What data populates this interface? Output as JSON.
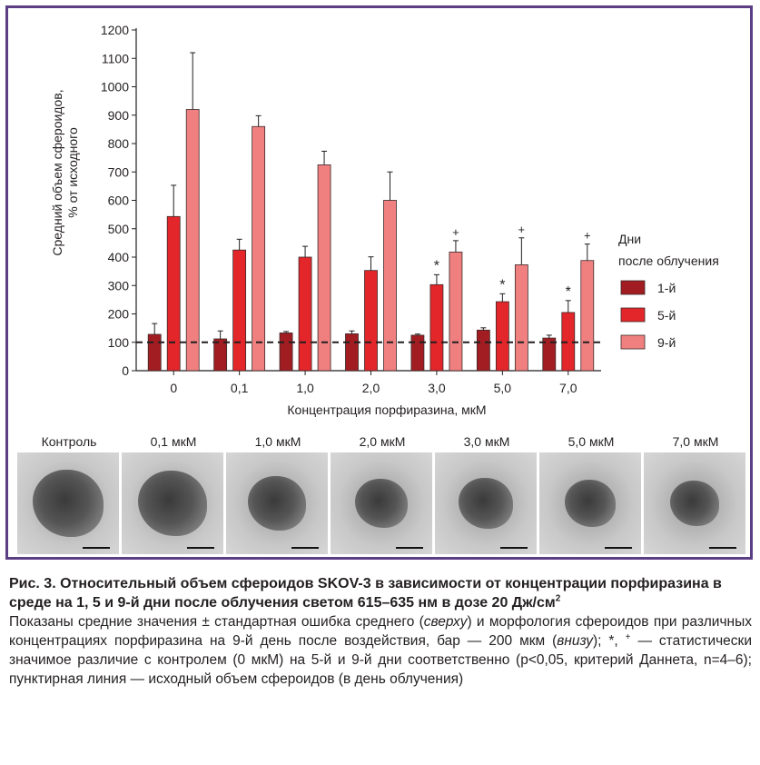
{
  "chart_data": {
    "type": "bar",
    "ylabel_line1": "Средний объем сфероидов,",
    "ylabel_line2": "% от исходного",
    "xlabel": "Концентрация порфиразина, мкМ",
    "ylim": [
      0,
      1200
    ],
    "yticks": [
      "0",
      "100",
      "200",
      "300",
      "400",
      "500",
      "600",
      "700",
      "800",
      "900",
      "1000",
      "1100",
      "1200"
    ],
    "categories": [
      "0",
      "0,1",
      "1,0",
      "2,0",
      "3,0",
      "5,0",
      "7,0"
    ],
    "reference_line": 100,
    "legend_title_line1": "Дни",
    "legend_title_line2": "после облучения",
    "legend_placement": "right",
    "series": [
      {
        "name": "1-й",
        "color": "#a11d21",
        "values": [
          128,
          112,
          133,
          130,
          125,
          143,
          115
        ],
        "errors": [
          38,
          28,
          5,
          10,
          4,
          8,
          10
        ],
        "marks": [
          "",
          "",
          "",
          "",
          "",
          "",
          ""
        ]
      },
      {
        "name": "5-й",
        "color": "#e3262a",
        "values": [
          543,
          425,
          400,
          353,
          303,
          243,
          205
        ],
        "errors": [
          110,
          38,
          38,
          48,
          35,
          28,
          42
        ],
        "marks": [
          "",
          "",
          "",
          "",
          "*",
          "*",
          "*"
        ]
      },
      {
        "name": "9-й",
        "color": "#f08080",
        "values": [
          920,
          860,
          725,
          600,
          418,
          373,
          388
        ],
        "errors": [
          200,
          38,
          48,
          100,
          40,
          95,
          58
        ],
        "marks": [
          "",
          "",
          "",
          "",
          "+",
          "+",
          "+"
        ]
      }
    ]
  },
  "photos": {
    "labels": [
      "Контроль",
      "0,1 мкМ",
      "1,0 мкМ",
      "2,0 мкМ",
      "3,0 мкМ",
      "5,0 мкМ",
      "7,0 мкМ"
    ]
  },
  "caption": {
    "title_main": "Рис. 3. Относительный объем сфероидов SKOV-3 в зависимости от концентрации порфиразина в среде на 1, 5 и 9-й дни после облучения светом 615–635 нм в дозе 20 Дж/см",
    "title_sup": "2",
    "body_1": "Показаны средние значения ± стандартная ошибка среднего (",
    "body_em1": "сверху",
    "body_2": ") и морфология сфероидов при различных концентрациях порфиразина на 9-й день после воздействия, бар — 200 мкм (",
    "body_em2": "внизу",
    "body_3": "); *, ",
    "body_sup": "+",
    "body_4": " — статистически значимое различие с контролем (0 мкМ) на 5-й и 9-й дни соответственно (p<0,05, критерий Даннета, n=4–6); пунктирная линия — исходный объем сфероидов (в день облучения)"
  }
}
